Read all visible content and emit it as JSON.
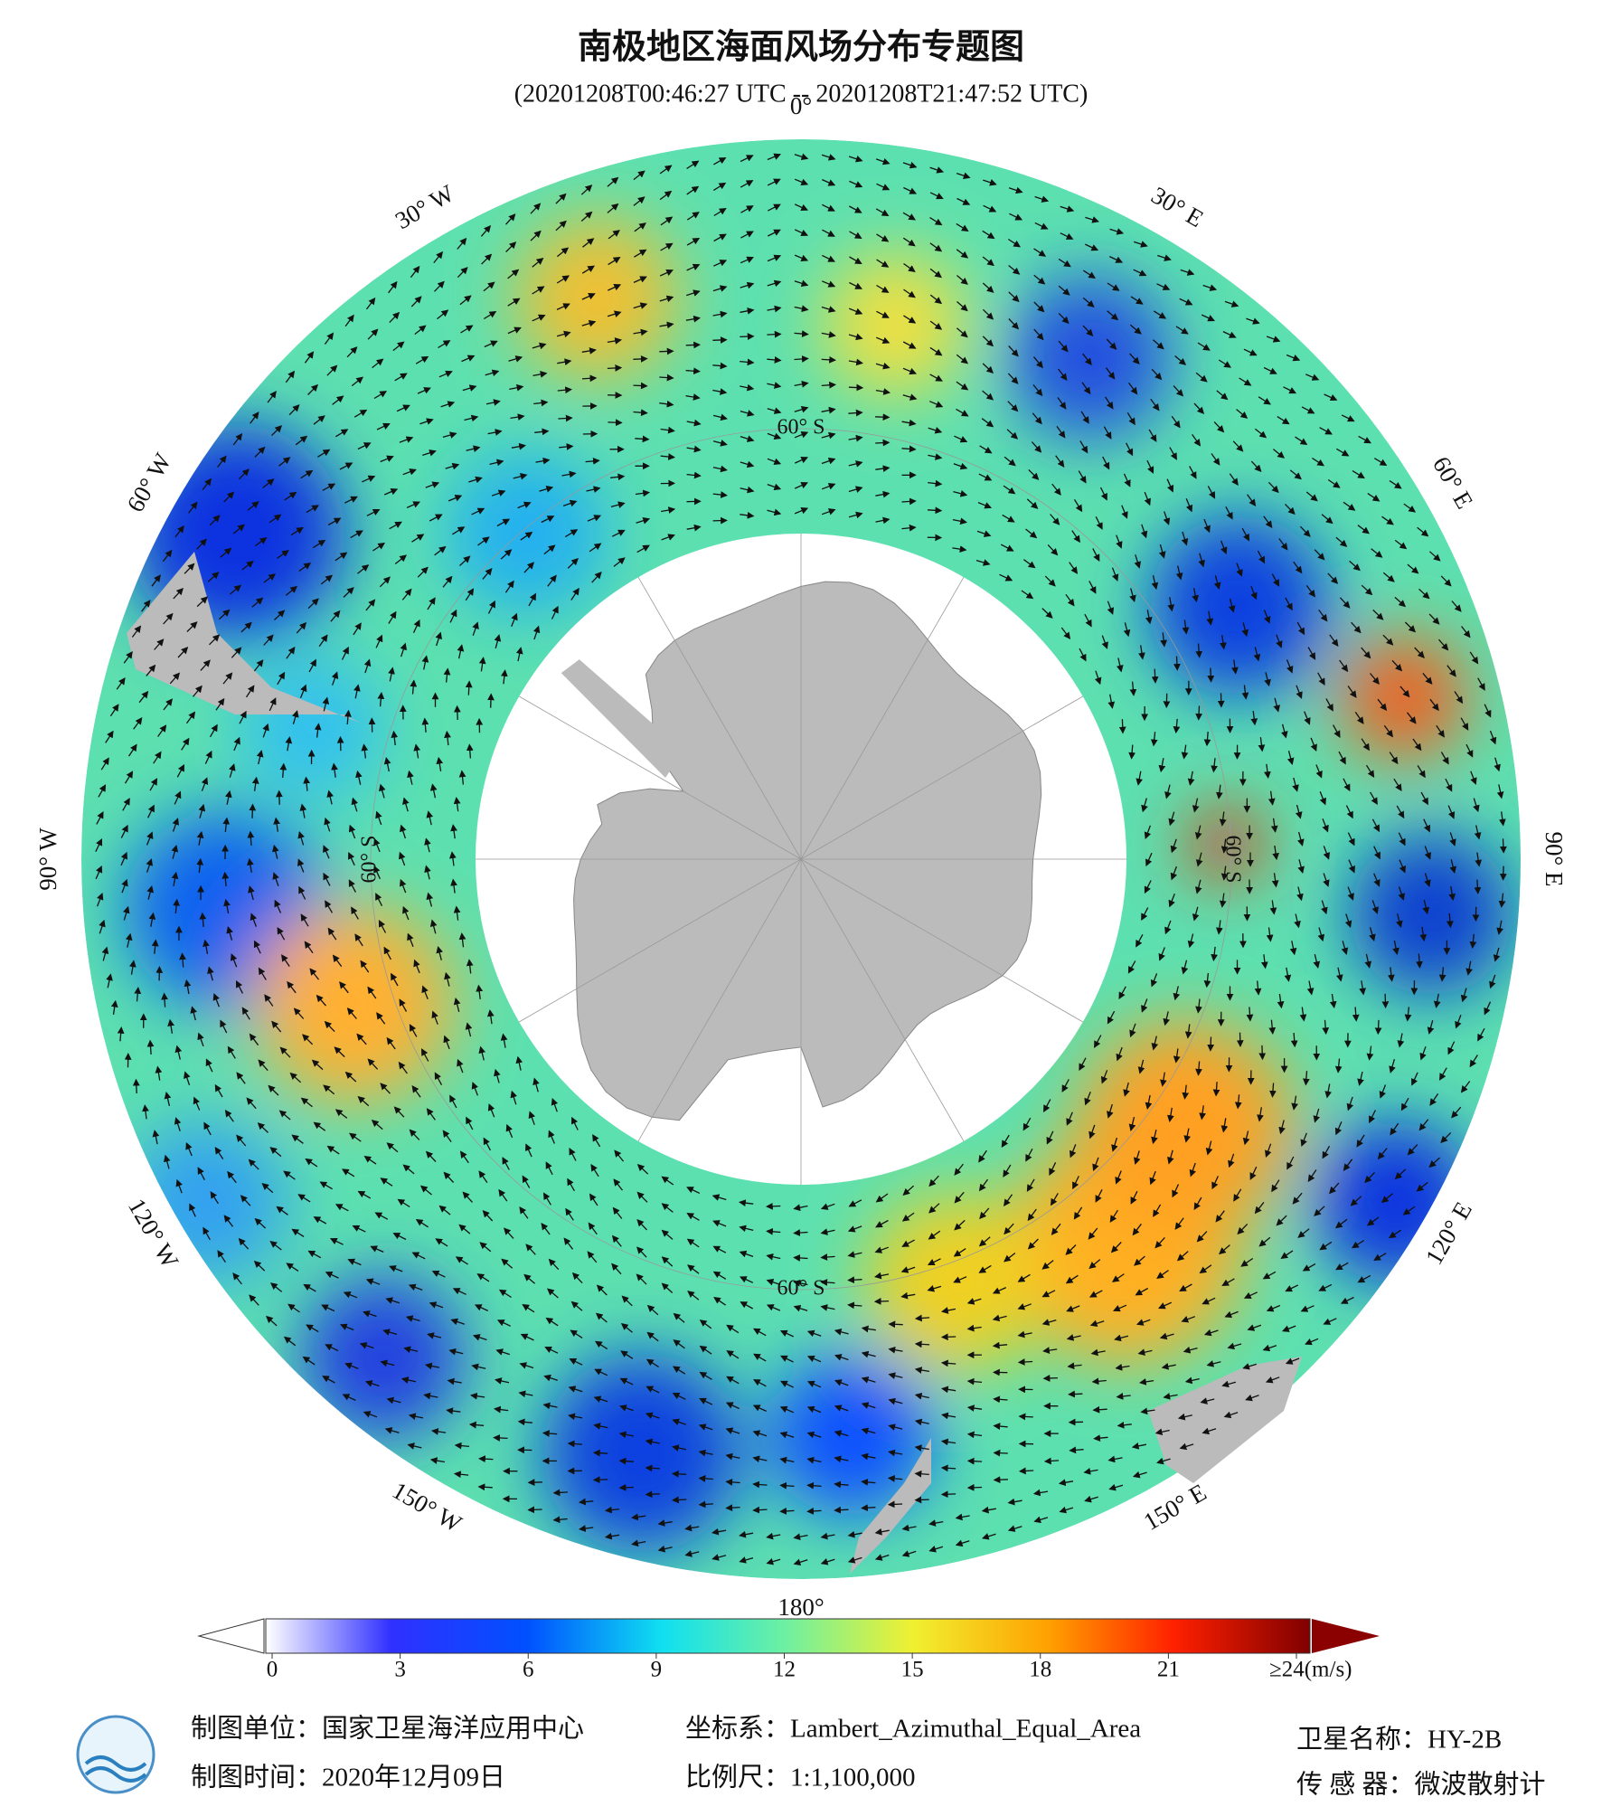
{
  "header": {
    "title": "南极地区海面风场分布专题图",
    "time_range": "(20201208T00:46:27 UTC -- 20201208T21:47:52 UTC)"
  },
  "map": {
    "longitude_labels": [
      "0°",
      "30° E",
      "60° E",
      "90° E",
      "120° E",
      "150° E",
      "180°",
      "150° W",
      "120° W",
      "90° W",
      "60° W",
      "30° W"
    ],
    "latitude_labels": [
      "60° S",
      "60° S",
      "60° S",
      "60° S"
    ]
  },
  "colorbar": {
    "range": [
      0,
      24
    ],
    "ticks": [
      0,
      3,
      6,
      9,
      12,
      15,
      18,
      21,
      {
        "value": 24,
        "label": "≥24(m/s)"
      }
    ]
  },
  "footer": {
    "unit": "制图单位：国家卫星海洋应用中心",
    "date": "制图时间：2020年12月09日",
    "crs": "坐标系：Lambert_Azimuthal_Equal_Area",
    "scale": "比例尺：1:1,100,000",
    "satellite": "卫星名称：HY-2B",
    "sensor": "传 感 器：微波散射计"
  }
}
